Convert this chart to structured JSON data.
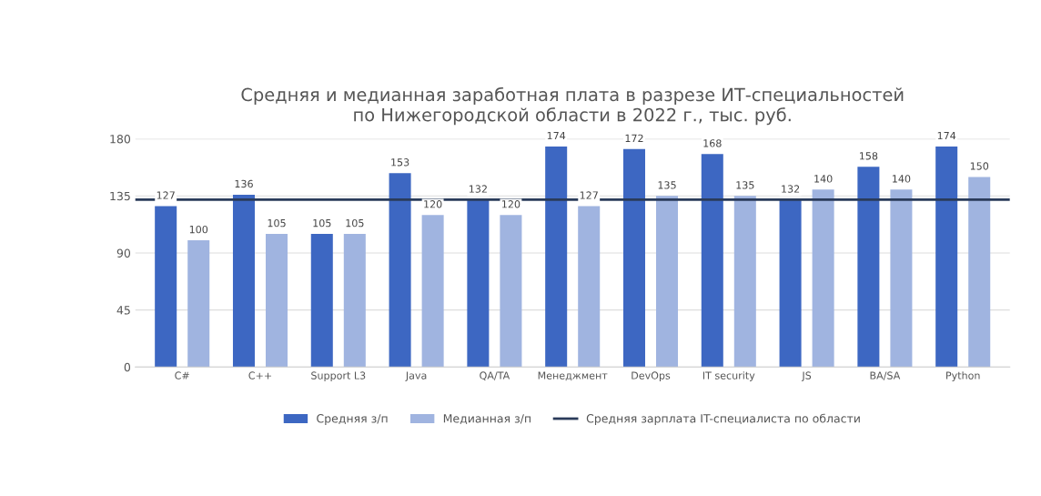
{
  "chart_data": {
    "type": "bar",
    "title": "Средняя и медианная заработная плата в разрезе ИТ-специальностей\nпо Нижегородской области в 2022 г., тыс. руб.",
    "categories": [
      "C#",
      "C++",
      "Support L3",
      "Java",
      "QA/TA",
      "Менеджмент",
      "DevOps",
      "IT security",
      "JS",
      "BA/SA",
      "Python"
    ],
    "series": [
      {
        "name": "Средняя з/п",
        "color": "#3d67c2",
        "values": [
          127,
          136,
          105,
          153,
          132,
          174,
          172,
          168,
          132,
          158,
          174
        ]
      },
      {
        "name": "Медианная з/п",
        "color": "#a0b4e0",
        "values": [
          100,
          105,
          105,
          120,
          120,
          127,
          135,
          135,
          140,
          140,
          150
        ]
      }
    ],
    "ref_lines": [
      {
        "axis": "y",
        "value": 132,
        "label": "Средняя зарплата IT-специалиста по области",
        "color": "#2a3b5a"
      }
    ],
    "ylim": [
      0,
      180
    ],
    "yticks": [
      0,
      45,
      90,
      135,
      180
    ],
    "grid": "y",
    "legend": "bottom",
    "data_labels": true
  }
}
